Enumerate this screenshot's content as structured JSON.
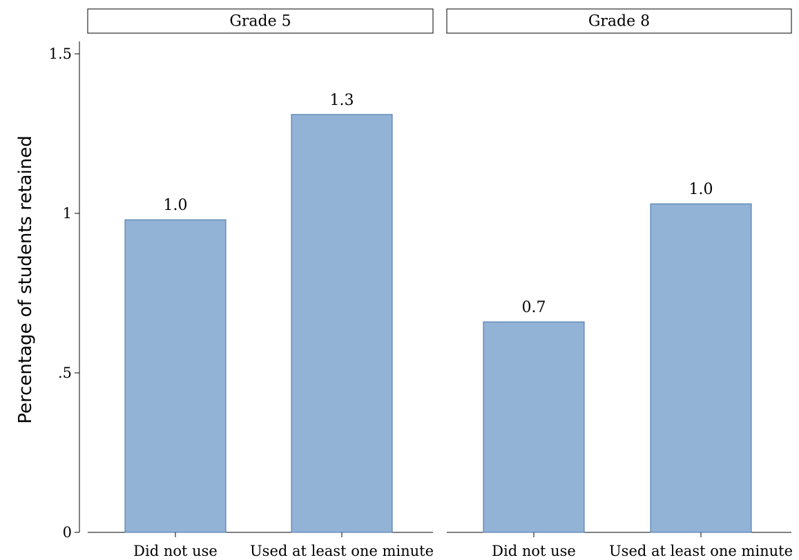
{
  "chart_data": {
    "type": "bar",
    "ylabel": "Percentage of students retained",
    "ylim": [
      0,
      1.6
    ],
    "yticks": [
      0,
      0.5,
      1,
      1.5
    ],
    "ytick_labels": [
      "0",
      ".5",
      "1",
      "1.5"
    ],
    "bar_color": "#92b2d6",
    "bar_edge_color": "#4472a8",
    "grid": false,
    "legend": "none",
    "panels": [
      {
        "title": "Grade 5",
        "categories": [
          "Did not use",
          "Used at least one minute"
        ],
        "values": [
          0.98,
          1.31
        ],
        "data_labels": [
          "1.0",
          "1.3"
        ]
      },
      {
        "title": "Grade 8",
        "categories": [
          "Did not use",
          "Used at least one minute"
        ],
        "values": [
          0.66,
          1.03
        ],
        "data_labels": [
          "0.7",
          "1.0"
        ]
      }
    ]
  }
}
